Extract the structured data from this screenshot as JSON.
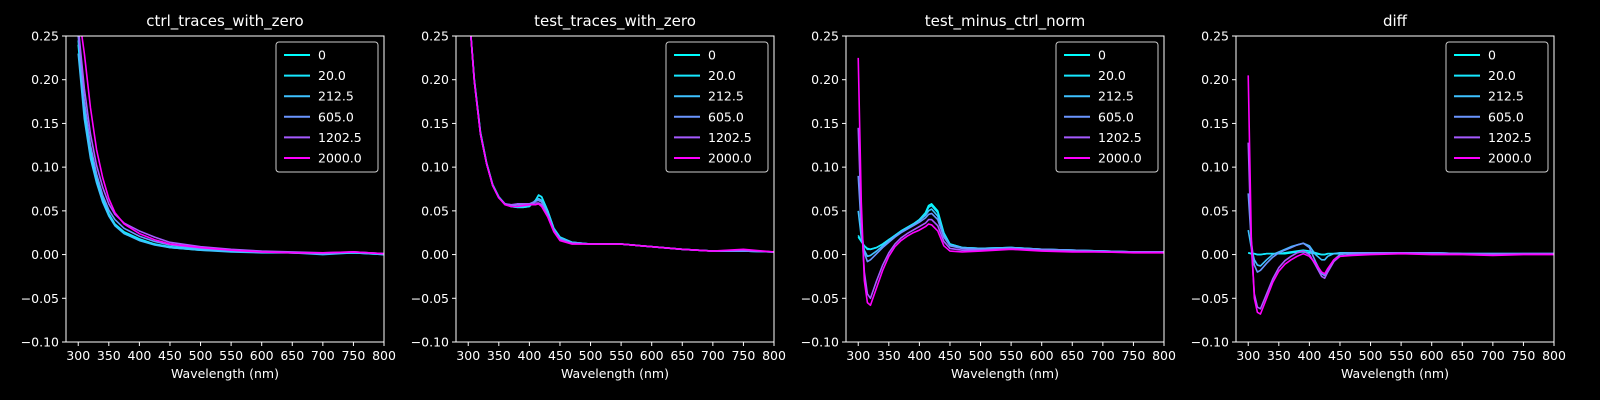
{
  "figure": {
    "background": "#000000",
    "foreground": "#ffffff"
  },
  "legend_entries": [
    {
      "label": "0",
      "color": "#00ffff"
    },
    {
      "label": "20.0",
      "color": "#16e8ff"
    },
    {
      "label": "212.5",
      "color": "#3ec1ff"
    },
    {
      "label": "605.0",
      "color": "#6a95ff"
    },
    {
      "label": "1202.5",
      "color": "#a55aff"
    },
    {
      "label": "2000.0",
      "color": "#ff00ff"
    }
  ],
  "chart_data": [
    {
      "type": "line",
      "title": "ctrl_traces_with_zero",
      "xlabel": "Wavelength (nm)",
      "ylabel": "",
      "xlim": [
        280,
        800
      ],
      "ylim": [
        -0.1,
        0.25
      ],
      "xticks": [
        "300",
        "350",
        "400",
        "450",
        "500",
        "550",
        "600",
        "650",
        "700",
        "750",
        "800"
      ],
      "yticks": [
        "−0.10",
        "−0.05",
        "0.00",
        "0.05",
        "0.10",
        "0.15",
        "0.20",
        "0.25"
      ],
      "legend": "top-right",
      "x": [
        300,
        310,
        320,
        330,
        340,
        350,
        360,
        375,
        400,
        425,
        450,
        500,
        550,
        600,
        650,
        700,
        750,
        800
      ],
      "series": [
        {
          "name": "0",
          "values": [
            0.24,
            0.16,
            0.115,
            0.085,
            0.062,
            0.045,
            0.034,
            0.025,
            0.017,
            0.012,
            0.008,
            0.005,
            0.004,
            0.003,
            0.002,
            0.001,
            0.002,
            0.0
          ]
        },
        {
          "name": "20.0",
          "values": [
            0.245,
            0.168,
            0.12,
            0.088,
            0.064,
            0.047,
            0.035,
            0.026,
            0.018,
            0.012,
            0.009,
            0.006,
            0.004,
            0.003,
            0.002,
            0.001,
            0.002,
            0.001
          ]
        },
        {
          "name": "212.5",
          "values": [
            0.23,
            0.155,
            0.11,
            0.082,
            0.06,
            0.044,
            0.033,
            0.024,
            0.016,
            0.011,
            0.008,
            0.005,
            0.003,
            0.002,
            0.002,
            0.0,
            0.002,
            0.0
          ]
        },
        {
          "name": "605.0",
          "values": [
            0.25,
            0.175,
            0.125,
            0.092,
            0.068,
            0.051,
            0.04,
            0.03,
            0.021,
            0.015,
            0.011,
            0.007,
            0.005,
            0.003,
            0.002,
            0.001,
            0.003,
            0.001
          ]
        },
        {
          "name": "1202.5",
          "values": [
            0.26,
            0.19,
            0.138,
            0.102,
            0.077,
            0.058,
            0.046,
            0.036,
            0.027,
            0.02,
            0.014,
            0.009,
            0.006,
            0.004,
            0.003,
            0.002,
            0.003,
            0.001
          ]
        },
        {
          "name": "2000.0",
          "values": [
            0.28,
            0.23,
            0.168,
            0.12,
            0.088,
            0.064,
            0.048,
            0.035,
            0.024,
            0.017,
            0.012,
            0.008,
            0.005,
            0.003,
            0.002,
            0.002,
            0.003,
            0.001
          ]
        }
      ]
    },
    {
      "type": "line",
      "title": "test_traces_with_zero",
      "xlabel": "Wavelength (nm)",
      "ylabel": "",
      "xlim": [
        280,
        800
      ],
      "ylim": [
        -0.1,
        0.25
      ],
      "xticks": [
        "300",
        "350",
        "400",
        "450",
        "500",
        "550",
        "600",
        "650",
        "700",
        "750",
        "800"
      ],
      "yticks": [
        "−0.10",
        "−0.05",
        "0.00",
        "0.05",
        "0.10",
        "0.15",
        "0.20",
        "0.25"
      ],
      "legend": "top-right",
      "x": [
        300,
        310,
        320,
        330,
        340,
        350,
        360,
        370,
        380,
        390,
        400,
        410,
        415,
        420,
        430,
        440,
        450,
        470,
        500,
        550,
        600,
        650,
        700,
        750,
        800
      ],
      "series": [
        {
          "name": "0",
          "values": [
            0.29,
            0.2,
            0.14,
            0.105,
            0.08,
            0.066,
            0.058,
            0.055,
            0.054,
            0.054,
            0.055,
            0.062,
            0.068,
            0.066,
            0.05,
            0.03,
            0.02,
            0.014,
            0.012,
            0.012,
            0.009,
            0.006,
            0.004,
            0.004,
            0.003
          ]
        },
        {
          "name": "20.0",
          "values": [
            0.29,
            0.2,
            0.14,
            0.105,
            0.08,
            0.066,
            0.058,
            0.055,
            0.054,
            0.054,
            0.055,
            0.062,
            0.068,
            0.066,
            0.05,
            0.03,
            0.02,
            0.014,
            0.012,
            0.012,
            0.009,
            0.006,
            0.004,
            0.004,
            0.003
          ]
        },
        {
          "name": "212.5",
          "values": [
            0.29,
            0.198,
            0.138,
            0.104,
            0.079,
            0.065,
            0.058,
            0.056,
            0.055,
            0.055,
            0.056,
            0.061,
            0.064,
            0.062,
            0.048,
            0.029,
            0.019,
            0.014,
            0.012,
            0.012,
            0.009,
            0.006,
            0.004,
            0.004,
            0.003
          ]
        },
        {
          "name": "605.0",
          "values": [
            0.29,
            0.198,
            0.138,
            0.104,
            0.079,
            0.065,
            0.058,
            0.057,
            0.057,
            0.057,
            0.058,
            0.061,
            0.062,
            0.06,
            0.046,
            0.028,
            0.018,
            0.013,
            0.012,
            0.012,
            0.009,
            0.006,
            0.004,
            0.004,
            0.003
          ]
        },
        {
          "name": "1202.5",
          "values": [
            0.29,
            0.198,
            0.138,
            0.104,
            0.079,
            0.065,
            0.058,
            0.057,
            0.058,
            0.058,
            0.058,
            0.059,
            0.059,
            0.057,
            0.044,
            0.027,
            0.017,
            0.013,
            0.012,
            0.012,
            0.009,
            0.006,
            0.004,
            0.005,
            0.003
          ]
        },
        {
          "name": "2000.0",
          "values": [
            0.29,
            0.198,
            0.138,
            0.104,
            0.079,
            0.065,
            0.057,
            0.055,
            0.055,
            0.056,
            0.057,
            0.057,
            0.058,
            0.055,
            0.043,
            0.026,
            0.016,
            0.012,
            0.012,
            0.012,
            0.009,
            0.006,
            0.004,
            0.006,
            0.003
          ]
        }
      ]
    },
    {
      "type": "line",
      "title": "test_minus_ctrl_norm",
      "xlabel": "Wavelength (nm)",
      "ylabel": "",
      "xlim": [
        280,
        800
      ],
      "ylim": [
        -0.1,
        0.25
      ],
      "xticks": [
        "300",
        "350",
        "400",
        "450",
        "500",
        "550",
        "600",
        "650",
        "700",
        "750",
        "800"
      ],
      "yticks": [
        "−0.10",
        "−0.05",
        "0.00",
        "0.05",
        "0.10",
        "0.15",
        "0.20",
        "0.25"
      ],
      "legend": "top-right",
      "x": [
        300,
        305,
        310,
        315,
        320,
        330,
        340,
        350,
        360,
        370,
        380,
        390,
        400,
        410,
        415,
        420,
        430,
        440,
        450,
        470,
        500,
        550,
        600,
        650,
        700,
        750,
        800
      ],
      "series": [
        {
          "name": "0",
          "values": [
            0.02,
            0.015,
            0.01,
            0.007,
            0.006,
            0.008,
            0.012,
            0.017,
            0.022,
            0.027,
            0.031,
            0.035,
            0.04,
            0.048,
            0.056,
            0.058,
            0.05,
            0.025,
            0.012,
            0.008,
            0.007,
            0.008,
            0.006,
            0.005,
            0.004,
            0.003,
            0.003
          ]
        },
        {
          "name": "20.0",
          "values": [
            0.022,
            0.015,
            0.01,
            0.006,
            0.006,
            0.008,
            0.012,
            0.017,
            0.022,
            0.027,
            0.031,
            0.035,
            0.04,
            0.047,
            0.054,
            0.056,
            0.048,
            0.024,
            0.012,
            0.008,
            0.007,
            0.008,
            0.006,
            0.005,
            0.004,
            0.003,
            0.003
          ]
        },
        {
          "name": "212.5",
          "values": [
            0.05,
            0.02,
            0.005,
            -0.002,
            -0.001,
            0.004,
            0.01,
            0.016,
            0.021,
            0.026,
            0.03,
            0.034,
            0.039,
            0.045,
            0.05,
            0.052,
            0.044,
            0.022,
            0.011,
            0.008,
            0.007,
            0.008,
            0.006,
            0.005,
            0.004,
            0.003,
            0.003
          ]
        },
        {
          "name": "605.0",
          "values": [
            0.09,
            0.03,
            0.002,
            -0.008,
            -0.006,
            0.001,
            0.008,
            0.014,
            0.02,
            0.025,
            0.029,
            0.033,
            0.037,
            0.042,
            0.046,
            0.047,
            0.04,
            0.02,
            0.01,
            0.007,
            0.006,
            0.007,
            0.006,
            0.005,
            0.004,
            0.003,
            0.003
          ]
        },
        {
          "name": "1202.5",
          "values": [
            0.145,
            0.04,
            -0.02,
            -0.045,
            -0.05,
            -0.03,
            -0.012,
            0.002,
            0.012,
            0.019,
            0.024,
            0.028,
            0.032,
            0.036,
            0.04,
            0.04,
            0.033,
            0.015,
            0.007,
            0.005,
            0.005,
            0.007,
            0.005,
            0.004,
            0.003,
            0.003,
            0.003
          ]
        },
        {
          "name": "2000.0",
          "values": [
            0.225,
            0.06,
            -0.03,
            -0.055,
            -0.058,
            -0.038,
            -0.018,
            -0.002,
            0.009,
            0.016,
            0.021,
            0.025,
            0.028,
            0.032,
            0.035,
            0.034,
            0.027,
            0.01,
            0.004,
            0.003,
            0.004,
            0.006,
            0.004,
            0.003,
            0.003,
            0.002,
            0.002
          ]
        }
      ]
    },
    {
      "type": "line",
      "title": "diff",
      "xlabel": "Wavelength (nm)",
      "ylabel": "",
      "xlim": [
        280,
        800
      ],
      "ylim": [
        -0.1,
        0.25
      ],
      "xticks": [
        "300",
        "350",
        "400",
        "450",
        "500",
        "550",
        "600",
        "650",
        "700",
        "750",
        "800"
      ],
      "yticks": [
        "−0.10",
        "−0.05",
        "0.00",
        "0.05",
        "0.10",
        "0.15",
        "0.20",
        "0.25"
      ],
      "legend": "top-right",
      "x": [
        300,
        305,
        310,
        315,
        320,
        330,
        340,
        350,
        360,
        370,
        380,
        390,
        400,
        410,
        420,
        425,
        430,
        440,
        450,
        470,
        500,
        550,
        600,
        650,
        700,
        750,
        800
      ],
      "series": [
        {
          "name": "0",
          "values": [
            0.002,
            0.001,
            0.001,
            0.0,
            0.0,
            0.001,
            0.001,
            0.001,
            0.001,
            0.002,
            0.003,
            0.003,
            0.002,
            0.001,
            0.0,
            0.0,
            0.001,
            0.001,
            0.001,
            0.001,
            0.001,
            0.001,
            0.002,
            0.001,
            0.001,
            0.001,
            0.001
          ]
        },
        {
          "name": "20.0",
          "values": [
            0.002,
            0.001,
            0.001,
            0.0,
            0.0,
            0.001,
            0.001,
            0.001,
            0.002,
            0.003,
            0.004,
            0.005,
            0.004,
            0.002,
            0.0,
            0.0,
            0.001,
            0.001,
            0.001,
            0.001,
            0.001,
            0.001,
            0.002,
            0.001,
            0.001,
            0.001,
            0.001
          ]
        },
        {
          "name": "212.5",
          "values": [
            0.028,
            0.008,
            -0.006,
            -0.012,
            -0.013,
            -0.006,
            0.0,
            0.003,
            0.006,
            0.009,
            0.011,
            0.013,
            0.01,
            0.0,
            -0.006,
            -0.006,
            -0.002,
            0.001,
            0.002,
            0.002,
            0.002,
            0.002,
            0.002,
            0.001,
            0.001,
            0.001,
            0.001
          ]
        },
        {
          "name": "605.0",
          "values": [
            0.07,
            0.015,
            -0.012,
            -0.02,
            -0.018,
            -0.01,
            -0.003,
            0.002,
            0.005,
            0.008,
            0.011,
            0.013,
            0.008,
            -0.008,
            -0.022,
            -0.024,
            -0.017,
            -0.006,
            0.0,
            0.002,
            0.002,
            0.002,
            0.002,
            0.001,
            0.001,
            0.001,
            0.001
          ]
        },
        {
          "name": "1202.5",
          "values": [
            0.128,
            0.01,
            -0.045,
            -0.06,
            -0.062,
            -0.045,
            -0.028,
            -0.015,
            -0.007,
            -0.002,
            0.002,
            0.004,
            0.0,
            -0.012,
            -0.025,
            -0.027,
            -0.02,
            -0.008,
            -0.002,
            0.0,
            0.001,
            0.002,
            0.001,
            0.001,
            0.0,
            0.001,
            0.001
          ]
        },
        {
          "name": "2000.0",
          "values": [
            0.205,
            0.02,
            -0.05,
            -0.066,
            -0.068,
            -0.05,
            -0.032,
            -0.019,
            -0.011,
            -0.006,
            -0.002,
            0.001,
            -0.002,
            -0.01,
            -0.02,
            -0.022,
            -0.016,
            -0.006,
            -0.002,
            -0.001,
            0.0,
            0.001,
            0.0,
            0.0,
            -0.001,
            0.0,
            0.0
          ]
        }
      ]
    }
  ]
}
